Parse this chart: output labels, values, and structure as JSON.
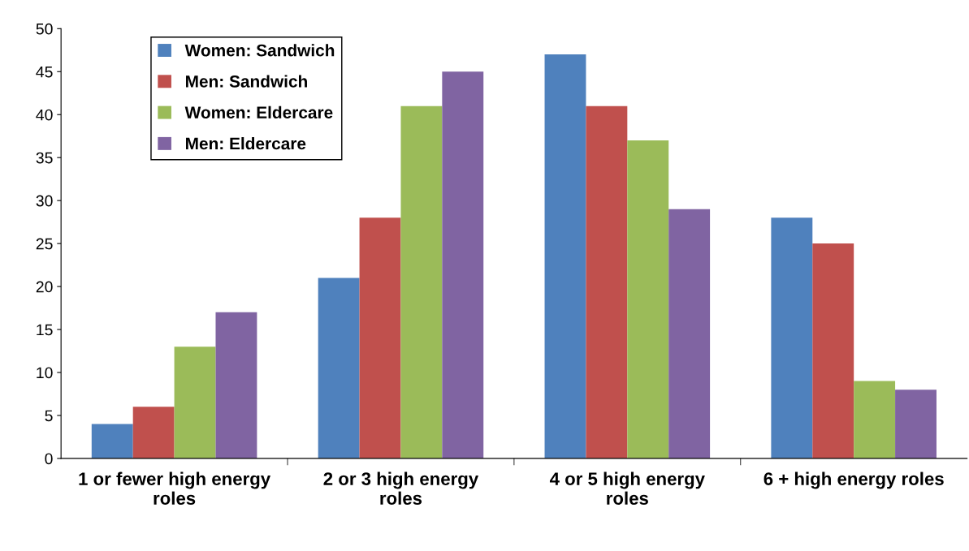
{
  "chart_data": {
    "type": "bar",
    "categories": [
      "1 or fewer high energy\nroles",
      "2 or 3 high energy\nroles",
      "4 or 5 high energy\nroles",
      "6 + high energy roles"
    ],
    "series": [
      {
        "name": "Women: Sandwich",
        "color": "#4f81bd",
        "values": [
          4,
          21,
          47,
          28
        ]
      },
      {
        "name": "Men: Sandwich",
        "color": "#c0504d",
        "values": [
          6,
          28,
          41,
          25
        ]
      },
      {
        "name": "Women: Eldercare",
        "color": "#9bbb59",
        "values": [
          13,
          41,
          37,
          9
        ]
      },
      {
        "name": "Men: Eldercare",
        "color": "#8064a2",
        "values": [
          17,
          45,
          29,
          8
        ]
      }
    ],
    "ylim": [
      0,
      50
    ],
    "yticks": [
      0,
      5,
      10,
      15,
      20,
      25,
      30,
      35,
      40,
      45,
      50
    ],
    "grid": false,
    "legend": "top left"
  }
}
